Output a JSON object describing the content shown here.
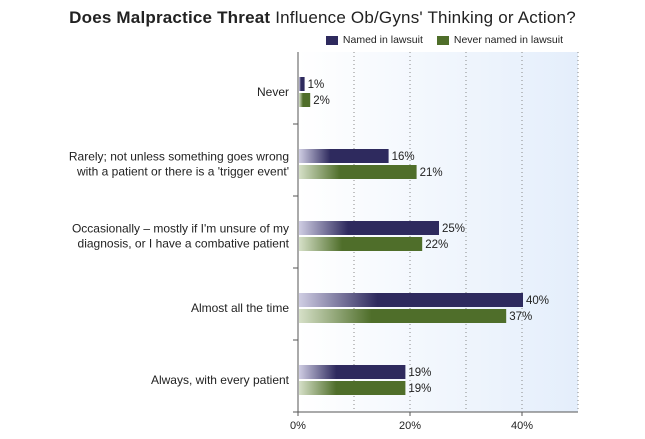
{
  "title": {
    "bold": "Does Malpractice Threat",
    "rest": "Influence Ob/Gyns' Thinking or Action?"
  },
  "legend": [
    {
      "label": "Named in lawsuit",
      "color": "#2e2a5e"
    },
    {
      "label": "Never named in lawsuit",
      "color": "#4f6e2a"
    }
  ],
  "chart_data": {
    "type": "bar",
    "orientation": "horizontal",
    "title": "Does Malpractice Threat Influence Ob/Gyns' Thinking or Action?",
    "categories": [
      [
        "Never"
      ],
      [
        "Rarely; not unless something goes wrong",
        "with a patient or there is a 'trigger event'"
      ],
      [
        "Occasionally – mostly if I'm unsure of my",
        "diagnosis, or I have a combative patient"
      ],
      [
        "Almost all the time"
      ],
      [
        "Always, with every patient"
      ]
    ],
    "series": [
      {
        "name": "Named in lawsuit",
        "values": [
          1,
          16,
          25,
          40,
          19
        ],
        "color": "#2e2a5e"
      },
      {
        "name": "Never named in lawsuit",
        "values": [
          2,
          21,
          22,
          37,
          19
        ],
        "color": "#4f6e2a"
      }
    ],
    "xlim": [
      0,
      50
    ],
    "xticks": [
      0,
      20,
      40
    ],
    "tick_suffix": "%",
    "value_suffix": "%",
    "grid": true,
    "legend_position": "top-right"
  }
}
